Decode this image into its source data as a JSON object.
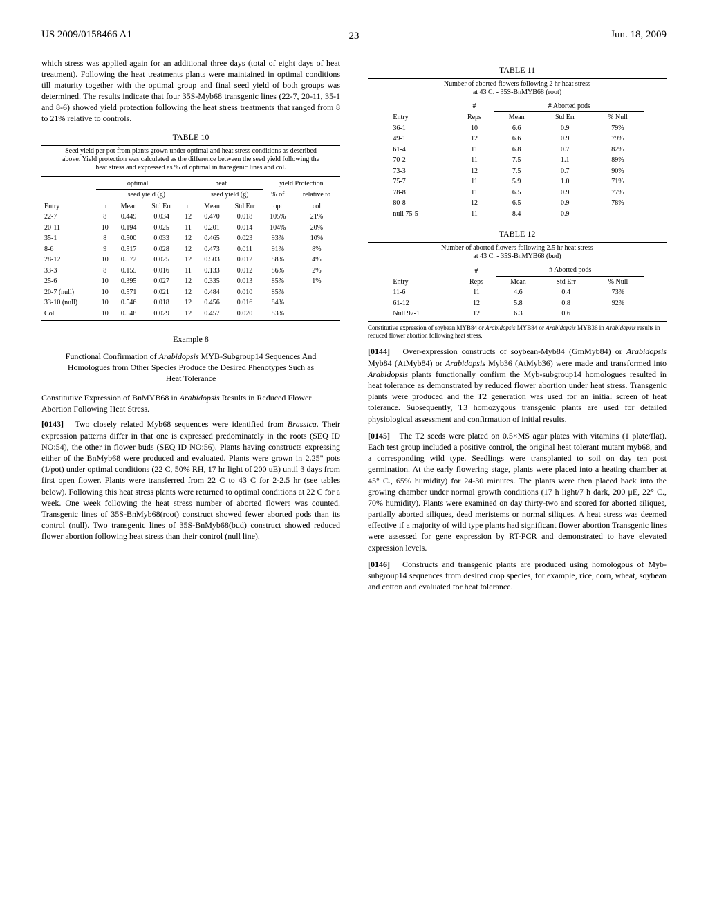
{
  "header": {
    "left": "US 2009/0158466 A1",
    "right": "Jun. 18, 2009",
    "pagenum": "23"
  },
  "left_col": {
    "para1": "which stress was applied again for an additional three days (total of eight days of heat treatment). Following the heat treatments plants were maintained in optimal conditions till maturity together with the optimal group and final seed yield of both groups was determined. The results indicate that four 35S-Myb68 transgenic lines (22-7, 20-11, 35-1 and 8-6) showed yield protection following the heat stress treatments that ranged from 8 to 21% relative to controls.",
    "table10": {
      "title": "TABLE 10",
      "caption": "Seed yield per pot from plants grown under optimal and heat stress conditions as described above. Yield protection was calculated as the difference between the seed yield following the heat stress and expressed as % of optimal in transgenic lines and col.",
      "group_headers": [
        "optimal",
        "heat",
        "yield Protection"
      ],
      "sub_headers": [
        "seed yield (g)",
        "seed yield (g)",
        "% of",
        "relative to"
      ],
      "columns": [
        "Entry",
        "n",
        "Mean",
        "Std Err",
        "n",
        "Mean",
        "Std Err",
        "opt",
        "col"
      ],
      "rows": [
        [
          "22-7",
          "8",
          "0.449",
          "0.034",
          "12",
          "0.470",
          "0.018",
          "105%",
          "21%"
        ],
        [
          "20-11",
          "10",
          "0.194",
          "0.025",
          "11",
          "0.201",
          "0.014",
          "104%",
          "20%"
        ],
        [
          "35-1",
          "8",
          "0.500",
          "0.033",
          "12",
          "0.465",
          "0.023",
          "93%",
          "10%"
        ],
        [
          "8-6",
          "9",
          "0.517",
          "0.028",
          "12",
          "0.473",
          "0.011",
          "91%",
          "8%"
        ],
        [
          "28-12",
          "10",
          "0.572",
          "0.025",
          "12",
          "0.503",
          "0.012",
          "88%",
          "4%"
        ],
        [
          "33-3",
          "8",
          "0.155",
          "0.016",
          "11",
          "0.133",
          "0.012",
          "86%",
          "2%"
        ],
        [
          "25-6",
          "10",
          "0.395",
          "0.027",
          "12",
          "0.335",
          "0.013",
          "85%",
          "1%"
        ],
        [
          "20-7 (null)",
          "10",
          "0.571",
          "0.021",
          "12",
          "0.484",
          "0.010",
          "85%",
          ""
        ],
        [
          "33-10 (null)",
          "10",
          "0.546",
          "0.018",
          "12",
          "0.456",
          "0.016",
          "84%",
          ""
        ],
        [
          "Col",
          "10",
          "0.548",
          "0.029",
          "12",
          "0.457",
          "0.020",
          "83%",
          ""
        ]
      ]
    },
    "example8": {
      "label": "Example 8",
      "title": "Functional Confirmation of Arabidopsis MYB-Subgroup14 Sequences And Homologues from Other Species Produce the Desired Phenotypes Such as Heat Tolerance",
      "subhead": "Constitutive Expression of BnMYB68 in Arabidopsis Results in Reduced Flower Abortion Following Heat Stress.",
      "para_num": "[0143]",
      "para": "Two closely related Myb68 sequences were identified from Brassica. Their expression patterns differ in that one is expressed predominately in the roots (SEQ ID NO:54), the other in flower buds (SEQ ID NO:56). Plants having constructs expressing either of the BnMyb68 were produced and evaluated. Plants were grown in 2.25\" pots (1/pot) under optimal conditions (22 C, 50% RH, 17 hr light of 200 uE) until 3 days from first open flower. Plants were transferred from 22 C to 43 C for 2-2.5 hr (see tables below). Following this heat stress plants were returned to optimal conditions at 22 C for a week. One week following the heat stress number of aborted flowers was counted. Transgenic lines of 35S-BnMyb68(root) construct showed fewer aborted pods than its control (null). Two transgenic lines of 35S-BnMyb68(bud) construct showed reduced flower abortion following heat stress than their control (null line)."
    }
  },
  "right_col": {
    "table11": {
      "title": "TABLE 11",
      "caption": "Number of aborted flowers following 2 hr heat stress at 43 C. - 35S-BnMYB68 (root)",
      "group_headers": [
        "#",
        "# Aborted pods"
      ],
      "columns": [
        "Entry",
        "Reps",
        "Mean",
        "Std Err",
        "% Null"
      ],
      "rows": [
        [
          "36-1",
          "10",
          "6.6",
          "0.9",
          "79%"
        ],
        [
          "49-1",
          "12",
          "6.6",
          "0.9",
          "79%"
        ],
        [
          "61-4",
          "11",
          "6.8",
          "0.7",
          "82%"
        ],
        [
          "70-2",
          "11",
          "7.5",
          "1.1",
          "89%"
        ],
        [
          "73-3",
          "12",
          "7.5",
          "0.7",
          "90%"
        ],
        [
          "75-7",
          "11",
          "5.9",
          "1.0",
          "71%"
        ],
        [
          "78-8",
          "11",
          "6.5",
          "0.9",
          "77%"
        ],
        [
          "80-8",
          "12",
          "6.5",
          "0.9",
          "78%"
        ],
        [
          "null 75-5",
          "11",
          "8.4",
          "0.9",
          ""
        ]
      ]
    },
    "table12": {
      "title": "TABLE 12",
      "caption": "Number of aborted flowers following 2.5 hr heat stress at 43 C. - 35S-BnMYB68 (bud)",
      "group_headers": [
        "#",
        "# Aborted pods"
      ],
      "columns": [
        "Entry",
        "Reps",
        "Mean",
        "Std Err",
        "% Null"
      ],
      "rows": [
        [
          "11-6",
          "11",
          "4.6",
          "0.4",
          "73%"
        ],
        [
          "61-12",
          "12",
          "5.8",
          "0.8",
          "92%"
        ],
        [
          "Null 97-1",
          "12",
          "6.3",
          "0.6",
          ""
        ]
      ],
      "footnote": "Constitutive expression of soybean MYB84 or Arabidopsis MYB84 or Arabidopsis MYB36 in Arabidopsis results in reduced flower abortion following heat stress."
    },
    "para144_num": "[0144]",
    "para144": "Over-expression constructs of soybean-Myb84 (GmMyb84) or Arabidopsis Myb84 (AtMyb84) or Arabidopsis Myb36 (AtMyb36) were made and transformed into Arabidopsis plants functionally confirm the Myb-subgroup14 homologues resulted in heat tolerance as demonstrated by reduced flower abortion under heat stress. Transgenic plants were produced and the T2 generation was used for an initial screen of heat tolerance. Subsequently, T3 homozygous transgenic plants are used for detailed physiological assessment and confirmation of initial results.",
    "para145_num": "[0145]",
    "para145": "The T2 seeds were plated on 0.5×MS agar plates with vitamins (1 plate/flat). Each test group included a positive control, the original heat tolerant mutant myb68, and a corresponding wild type. Seedlings were transplanted to soil on day ten post germination. At the early flowering stage, plants were placed into a heating chamber at 45° C., 65% humidity) for 24-30 minutes. The plants were then placed back into the growing chamber under normal growth conditions (17 h light/7 h dark, 200 μE, 22° C., 70% humidity). Plants were examined on day thirty-two and scored for aborted siliques, partially aborted siliques, dead meristems or normal siliques. A heat stress was deemed effective if a majority of wild type plants had significant flower abortion Transgenic lines were assessed for gene expression by RT-PCR and demonstrated to have elevated expression levels.",
    "para146_num": "[0146]",
    "para146": "Constructs and transgenic plants are produced using homologous of Myb-subgroup14 sequences from desired crop species, for example, rice, corn, wheat, soybean and cotton and evaluated for heat tolerance."
  }
}
